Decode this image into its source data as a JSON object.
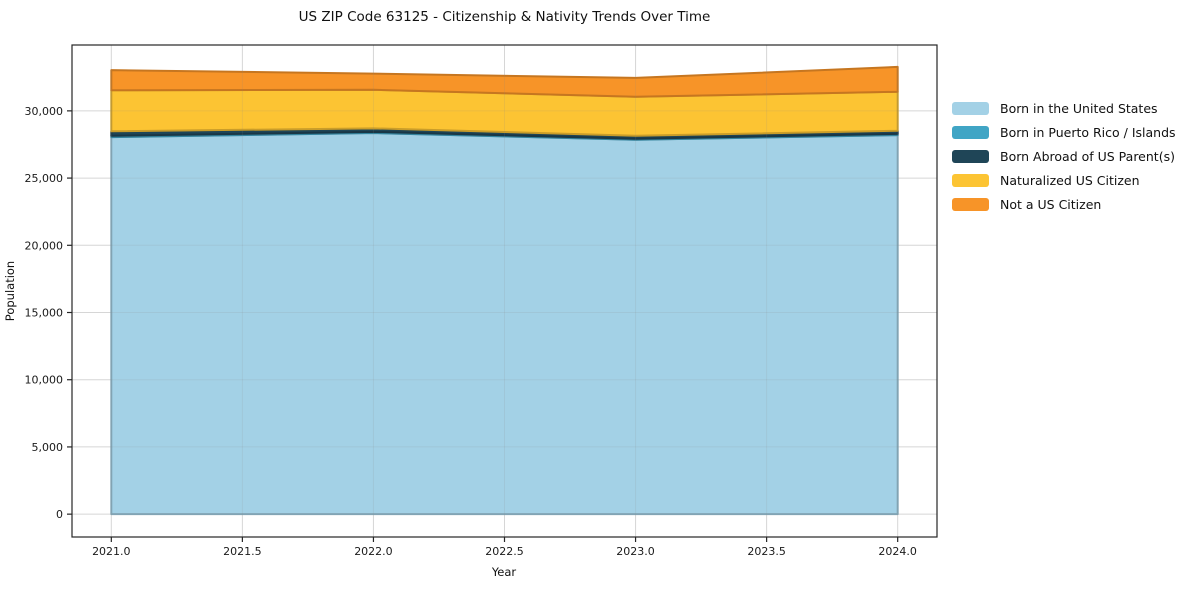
{
  "chart_data": {
    "type": "area",
    "stacked": true,
    "title": "US ZIP Code 63125 - Citizenship & Nativity Trends Over Time",
    "xlabel": "Year",
    "ylabel": "Population",
    "x": [
      2021,
      2022,
      2023,
      2024
    ],
    "series": [
      {
        "name": "Born in the United States",
        "color": "#a3d1e6",
        "values": [
          28050,
          28350,
          27850,
          28200
        ]
      },
      {
        "name": "Born in Puerto Rico / Islands",
        "color": "#40a5c5",
        "values": [
          100,
          90,
          80,
          90
        ]
      },
      {
        "name": "Born Abroad of US Parent(s)",
        "color": "#1f4557",
        "values": [
          330,
          260,
          220,
          230
        ]
      },
      {
        "name": "Naturalized US Citizen",
        "color": "#fcc433",
        "values": [
          3050,
          2870,
          2900,
          2900
        ]
      },
      {
        "name": "Not a US Citizen",
        "color": "#f79428",
        "values": [
          1500,
          1200,
          1400,
          1850
        ]
      }
    ],
    "xlim": [
      2020.85,
      2024.15
    ],
    "ylim": [
      -1700,
      34900
    ],
    "xticks": {
      "values": [
        2021.0,
        2021.5,
        2022.0,
        2022.5,
        2023.0,
        2023.5,
        2024.0
      ],
      "labels": [
        "2021.0",
        "2021.5",
        "2022.0",
        "2022.5",
        "2023.0",
        "2023.5",
        "2024.0"
      ]
    },
    "yticks": {
      "values": [
        0,
        5000,
        10000,
        15000,
        20000,
        25000,
        30000
      ],
      "labels": [
        "0",
        "5,000",
        "10,000",
        "15,000",
        "20,000",
        "25,000",
        "30,000"
      ]
    },
    "grid": true,
    "legend_position": "right-outside"
  }
}
